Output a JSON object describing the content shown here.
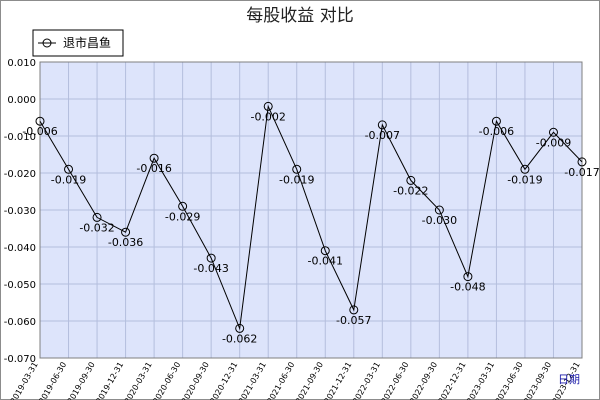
{
  "chart_data": {
    "type": "line",
    "title": "每股收益  对比",
    "xlabel": "日期",
    "ylabel": "",
    "ylim": [
      -0.07,
      0.01
    ],
    "yticks": [
      "0.010",
      "0.000",
      "-0.010",
      "-0.020",
      "-0.030",
      "-0.040",
      "-0.050",
      "-0.060",
      "-0.070"
    ],
    "grid": true,
    "legend_position": "top-left",
    "categories": [
      "2019-03-31",
      "2019-06-30",
      "2019-09-30",
      "2019-12-31",
      "2020-03-31",
      "2020-06-30",
      "2020-09-30",
      "2020-12-31",
      "2021-03-31",
      "2021-06-30",
      "2021-09-30",
      "2021-12-31",
      "2022-03-31",
      "2022-06-30",
      "2022-09-30",
      "2022-12-31",
      "2023-03-31",
      "2023-06-30",
      "2023-09-30",
      "2023-12-31"
    ],
    "series": [
      {
        "name": "退市昌鱼",
        "color": "#000000",
        "values": [
          -0.006,
          -0.019,
          -0.032,
          -0.036,
          -0.016,
          -0.029,
          -0.043,
          -0.062,
          -0.002,
          -0.019,
          -0.041,
          -0.057,
          -0.007,
          -0.022,
          -0.03,
          -0.048,
          -0.006,
          -0.019,
          -0.009,
          -0.017
        ],
        "labels": [
          "-0.006",
          "-0.019",
          "-0.032",
          "-0.036",
          "-0.016",
          "-0.029",
          "-0.043",
          "-0.062",
          "-0.002",
          "-0.019",
          "-0.041",
          "-0.057",
          "-0.007",
          "-0.022",
          "-0.030",
          "-0.048",
          "-0.006",
          "-0.019",
          "-0.009",
          "-0.017"
        ]
      }
    ],
    "colors": {
      "plot_bg": "#dde4fb",
      "grid": "#b4bedd",
      "line": "#000000",
      "axis_label": "#1a1aa8"
    }
  }
}
